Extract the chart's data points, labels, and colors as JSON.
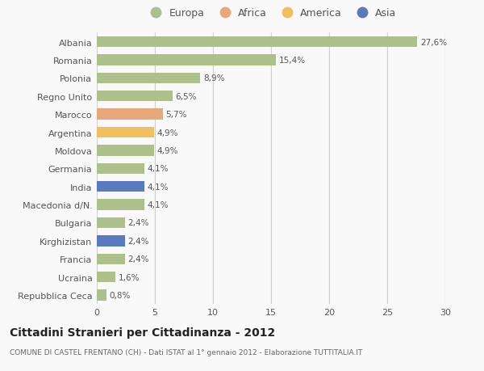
{
  "categories": [
    "Albania",
    "Romania",
    "Polonia",
    "Regno Unito",
    "Marocco",
    "Argentina",
    "Moldova",
    "Germania",
    "India",
    "Macedonia d/N.",
    "Bulgaria",
    "Kirghizistan",
    "Francia",
    "Ucraina",
    "Repubblica Ceca"
  ],
  "values": [
    27.6,
    15.4,
    8.9,
    6.5,
    5.7,
    4.9,
    4.9,
    4.1,
    4.1,
    4.1,
    2.4,
    2.4,
    2.4,
    1.6,
    0.8
  ],
  "labels": [
    "27,6%",
    "15,4%",
    "8,9%",
    "6,5%",
    "5,7%",
    "4,9%",
    "4,9%",
    "4,1%",
    "4,1%",
    "4,1%",
    "2,4%",
    "2,4%",
    "2,4%",
    "1,6%",
    "0,8%"
  ],
  "continents": [
    "Europa",
    "Europa",
    "Europa",
    "Europa",
    "Africa",
    "America",
    "Europa",
    "Europa",
    "Asia",
    "Europa",
    "Europa",
    "Asia",
    "Europa",
    "Europa",
    "Europa"
  ],
  "continent_colors": {
    "Europa": "#adc08a",
    "Africa": "#e8a87c",
    "America": "#f0c060",
    "Asia": "#5a7abf"
  },
  "legend_order": [
    "Europa",
    "Africa",
    "America",
    "Asia"
  ],
  "title": "Cittadini Stranieri per Cittadinanza - 2012",
  "subtitle": "COMUNE DI CASTEL FRENTANO (CH) - Dati ISTAT al 1° gennaio 2012 - Elaborazione TUTTITALIA.IT",
  "xlim": [
    0,
    30
  ],
  "xticks": [
    0,
    5,
    10,
    15,
    20,
    25,
    30
  ],
  "background_color": "#f9f9f9",
  "grid_color": "#d0d0d0",
  "bar_height": 0.6,
  "text_color": "#555555",
  "label_color": "#555555"
}
